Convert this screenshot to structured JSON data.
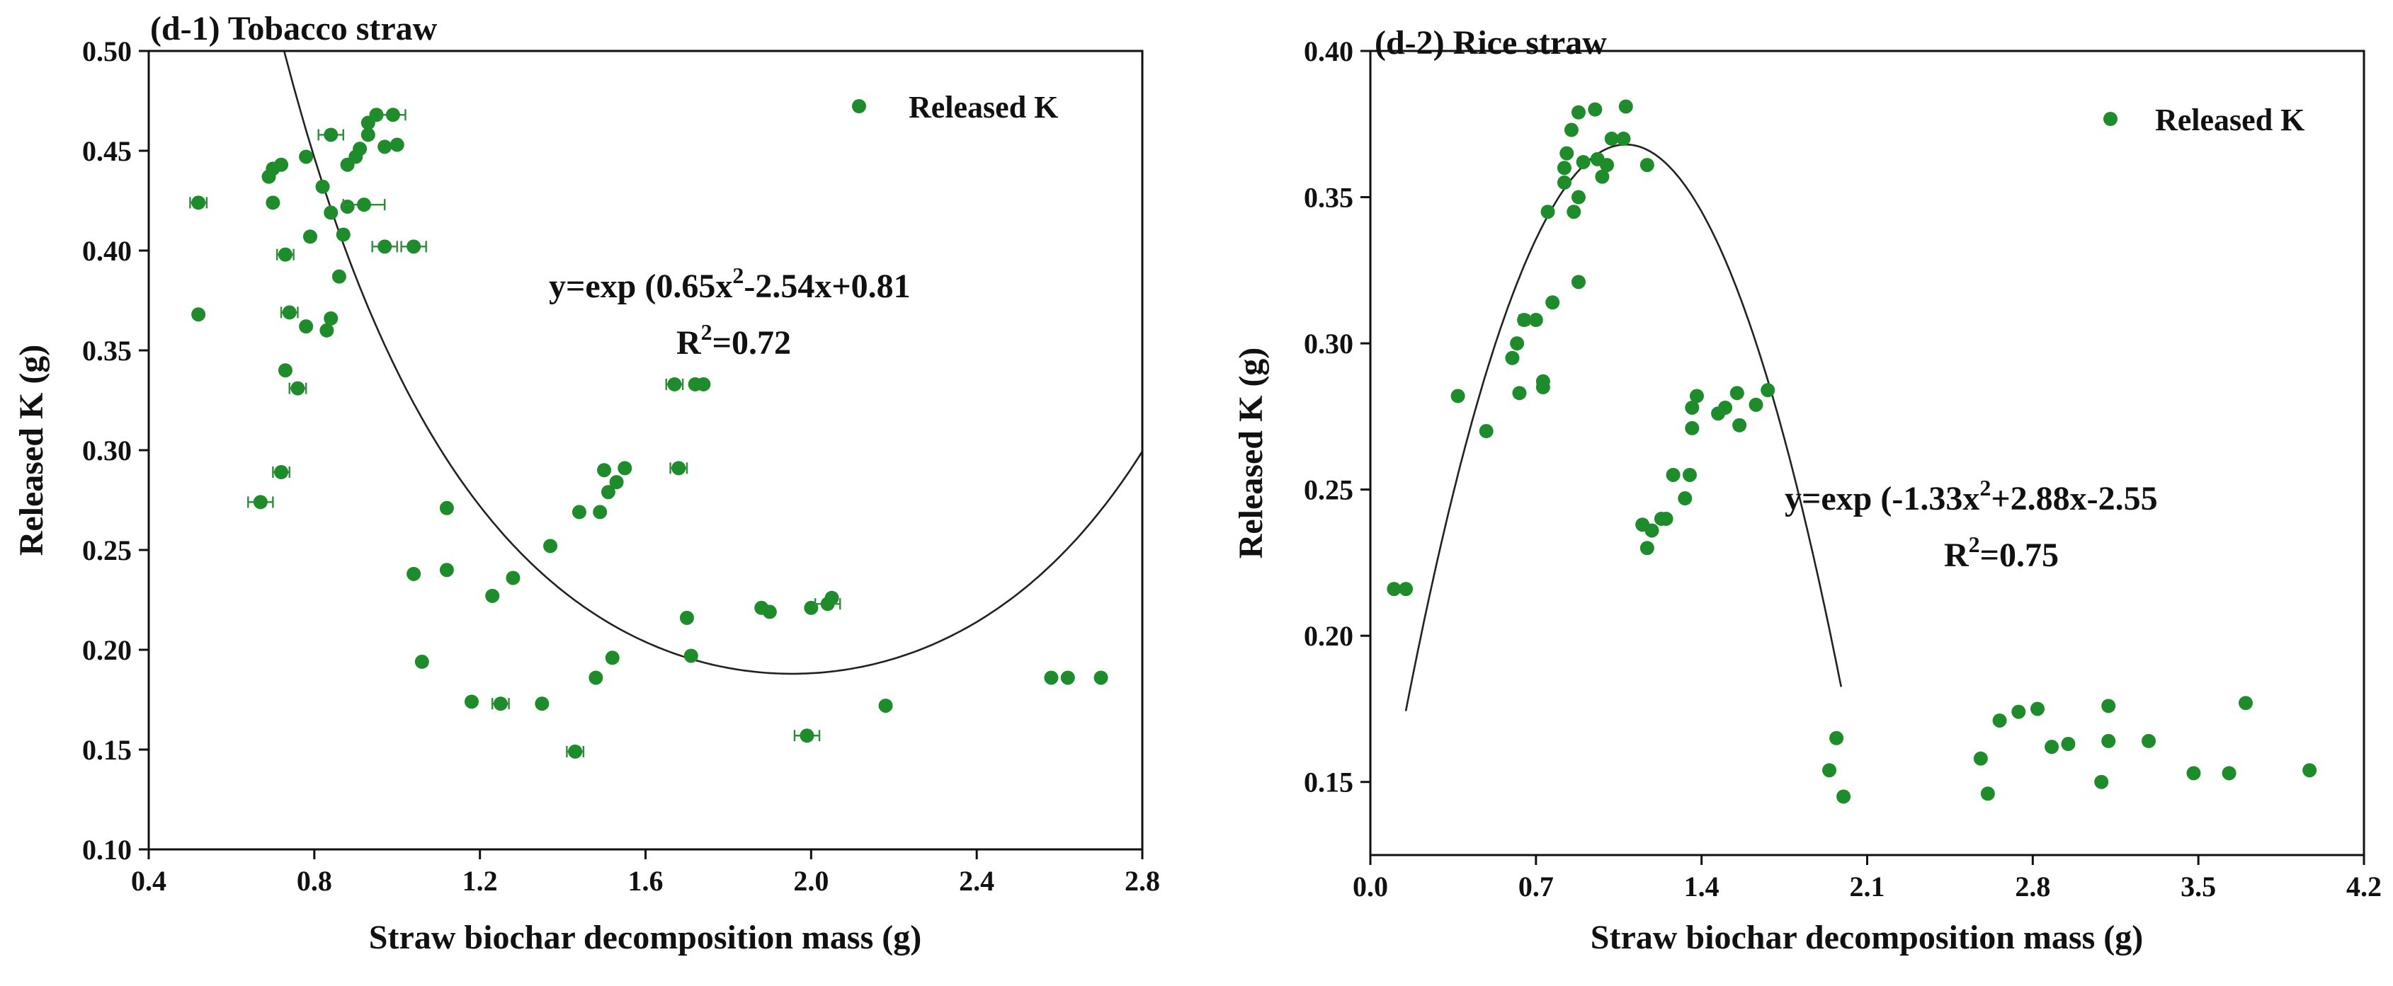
{
  "chart_data": [
    {
      "type": "scatter",
      "title": "(d-1) Tobacco straw",
      "xlabel": "Straw biochar decomposition mass (g)",
      "ylabel": "Released K (g)",
      "xlim": [
        0.4,
        2.8
      ],
      "ylim": [
        0.1,
        0.5
      ],
      "x_ticks": [
        "0.4",
        "0.8",
        "1.2",
        "1.6",
        "2.0",
        "2.4",
        "2.8"
      ],
      "y_ticks": [
        "0.10",
        "0.15",
        "0.20",
        "0.25",
        "0.30",
        "0.35",
        "0.40",
        "0.45",
        "0.50"
      ],
      "legend": {
        "label": "Released K",
        "position": "top-right"
      },
      "point_color": "#1e8c2a",
      "equation": {
        "line1_pre": "y=exp (0.65x",
        "line1_sup": "2",
        "line1_post": "-2.54x+0.81",
        "r2_pre": "R",
        "r2_sup": "2",
        "r2_post": "=0.72"
      },
      "fit": {
        "form": "exp(a*x^2+b*x+c)",
        "a": 0.65,
        "b": -2.54,
        "c": 0.81
      },
      "series": [
        {
          "name": "Released K",
          "points": [
            [
              0.52,
              0.424,
              0.02
            ],
            [
              0.52,
              0.368,
              0
            ],
            [
              0.67,
              0.274,
              0.03
            ],
            [
              0.7,
              0.424,
              0
            ],
            [
              0.69,
              0.437,
              0
            ],
            [
              0.7,
              0.441,
              0
            ],
            [
              0.72,
              0.443,
              0
            ],
            [
              0.72,
              0.289,
              0.02
            ],
            [
              0.73,
              0.398,
              0.02
            ],
            [
              0.73,
              0.34,
              0
            ],
            [
              0.74,
              0.369,
              0.02
            ],
            [
              0.76,
              0.331,
              0.02
            ],
            [
              0.78,
              0.362,
              0
            ],
            [
              0.78,
              0.447,
              0
            ],
            [
              0.79,
              0.407,
              0
            ],
            [
              0.82,
              0.432,
              0
            ],
            [
              0.83,
              0.36,
              0
            ],
            [
              0.84,
              0.366,
              0
            ],
            [
              0.84,
              0.419,
              0
            ],
            [
              0.84,
              0.458,
              0.03
            ],
            [
              0.86,
              0.387,
              0
            ],
            [
              0.87,
              0.408,
              0
            ],
            [
              0.88,
              0.422,
              0
            ],
            [
              0.88,
              0.443,
              0
            ],
            [
              0.9,
              0.447,
              0
            ],
            [
              0.91,
              0.451,
              0
            ],
            [
              0.92,
              0.423,
              0.05
            ],
            [
              0.93,
              0.458,
              0
            ],
            [
              0.93,
              0.464,
              0
            ],
            [
              0.95,
              0.468,
              0
            ],
            [
              0.97,
              0.452,
              0
            ],
            [
              0.97,
              0.402,
              0.03
            ],
            [
              0.99,
              0.468,
              0.03
            ],
            [
              1.0,
              0.453,
              0
            ],
            [
              1.04,
              0.402,
              0.03
            ],
            [
              1.04,
              0.238,
              0
            ],
            [
              1.06,
              0.194,
              0
            ],
            [
              1.12,
              0.24,
              0
            ],
            [
              1.12,
              0.271,
              0
            ],
            [
              1.18,
              0.174,
              0
            ],
            [
              1.23,
              0.227,
              0
            ],
            [
              1.25,
              0.173,
              0.02
            ],
            [
              1.28,
              0.236,
              0
            ],
            [
              1.35,
              0.173,
              0
            ],
            [
              1.37,
              0.252,
              0
            ],
            [
              1.43,
              0.149,
              0.02
            ],
            [
              1.44,
              0.269,
              0
            ],
            [
              1.48,
              0.186,
              0
            ],
            [
              1.49,
              0.269,
              0
            ],
            [
              1.5,
              0.29,
              0
            ],
            [
              1.51,
              0.279,
              0
            ],
            [
              1.52,
              0.196,
              0
            ],
            [
              1.53,
              0.284,
              0
            ],
            [
              1.55,
              0.291,
              0
            ],
            [
              1.67,
              0.333,
              0.02
            ],
            [
              1.68,
              0.291,
              0.02
            ],
            [
              1.7,
              0.216,
              0
            ],
            [
              1.71,
              0.197,
              0
            ],
            [
              1.72,
              0.333,
              0
            ],
            [
              1.74,
              0.333,
              0
            ],
            [
              1.88,
              0.221,
              0
            ],
            [
              1.9,
              0.219,
              0
            ],
            [
              1.99,
              0.157,
              0.03
            ],
            [
              2.0,
              0.221,
              0
            ],
            [
              2.04,
              0.223,
              0.03
            ],
            [
              2.05,
              0.226,
              0
            ],
            [
              2.18,
              0.172,
              0
            ],
            [
              2.58,
              0.186,
              0
            ],
            [
              2.62,
              0.186,
              0
            ],
            [
              2.7,
              0.186,
              0
            ]
          ]
        }
      ]
    },
    {
      "type": "scatter",
      "title": "(d-2) Rice straw",
      "xlabel": "Straw biochar decomposition mass (g)",
      "ylabel": "Released K (g)",
      "xlim": [
        0.0,
        4.2
      ],
      "ylim": [
        0.125,
        0.4
      ],
      "x_ticks": [
        "0.0",
        "0.7",
        "1.4",
        "2.1",
        "2.8",
        "3.5",
        "4.2"
      ],
      "y_ticks": [
        "0.15",
        "0.20",
        "0.25",
        "0.30",
        "0.35",
        "0.40"
      ],
      "legend": {
        "label": "Released K",
        "position": "top-right"
      },
      "point_color": "#1e8c2a",
      "equation": {
        "line1_pre": "y=exp (-1.33x",
        "line1_sup": "2",
        "line1_post": "+2.88x-2.55",
        "r2_pre": "R",
        "r2_sup": "2",
        "r2_post": "=0.75"
      },
      "fit": {
        "form": "quadratic-peak",
        "peak_x": 1.08,
        "peak_y": 0.368,
        "curvature": -0.224
      },
      "series": [
        {
          "name": "Released K",
          "points": [
            [
              0.1,
              0.216,
              0
            ],
            [
              0.15,
              0.216,
              0
            ],
            [
              0.37,
              0.282,
              0
            ],
            [
              0.49,
              0.27,
              0
            ],
            [
              0.6,
              0.295,
              0
            ],
            [
              0.62,
              0.3,
              0
            ],
            [
              0.63,
              0.283,
              0
            ],
            [
              0.65,
              0.308,
              0.02
            ],
            [
              0.7,
              0.308,
              0
            ],
            [
              0.73,
              0.287,
              0
            ],
            [
              0.73,
              0.285,
              0
            ],
            [
              0.75,
              0.345,
              0
            ],
            [
              0.77,
              0.314,
              0
            ],
            [
              0.82,
              0.355,
              0
            ],
            [
              0.82,
              0.36,
              0
            ],
            [
              0.83,
              0.365,
              0
            ],
            [
              0.85,
              0.373,
              0
            ],
            [
              0.86,
              0.345,
              0
            ],
            [
              0.88,
              0.35,
              0
            ],
            [
              0.88,
              0.321,
              0
            ],
            [
              0.88,
              0.379,
              0
            ],
            [
              0.9,
              0.362,
              0
            ],
            [
              0.95,
              0.38,
              0
            ],
            [
              0.96,
              0.363,
              0
            ],
            [
              0.98,
              0.357,
              0
            ],
            [
              1.0,
              0.361,
              0
            ],
            [
              1.02,
              0.37,
              0
            ],
            [
              1.07,
              0.37,
              0
            ],
            [
              1.08,
              0.381,
              0
            ],
            [
              1.17,
              0.361,
              0
            ],
            [
              1.15,
              0.238,
              0
            ],
            [
              1.17,
              0.23,
              0
            ],
            [
              1.19,
              0.236,
              0
            ],
            [
              1.23,
              0.24,
              0
            ],
            [
              1.25,
              0.24,
              0
            ],
            [
              1.28,
              0.255,
              0
            ],
            [
              1.33,
              0.247,
              0
            ],
            [
              1.35,
              0.255,
              0
            ],
            [
              1.36,
              0.271,
              0
            ],
            [
              1.36,
              0.278,
              0
            ],
            [
              1.38,
              0.282,
              0
            ],
            [
              1.47,
              0.276,
              0
            ],
            [
              1.5,
              0.278,
              0
            ],
            [
              1.55,
              0.283,
              0
            ],
            [
              1.56,
              0.272,
              0
            ],
            [
              1.63,
              0.279,
              0
            ],
            [
              1.68,
              0.284,
              0
            ],
            [
              1.94,
              0.154,
              0
            ],
            [
              1.97,
              0.165,
              0
            ],
            [
              2.0,
              0.145,
              0
            ],
            [
              2.58,
              0.158,
              0
            ],
            [
              2.61,
              0.146,
              0
            ],
            [
              2.66,
              0.171,
              0
            ],
            [
              2.74,
              0.174,
              0
            ],
            [
              2.82,
              0.175,
              0
            ],
            [
              2.88,
              0.162,
              0
            ],
            [
              2.95,
              0.163,
              0
            ],
            [
              3.09,
              0.15,
              0
            ],
            [
              3.12,
              0.176,
              0
            ],
            [
              3.12,
              0.164,
              0
            ],
            [
              3.29,
              0.164,
              0
            ],
            [
              3.48,
              0.153,
              0
            ],
            [
              3.63,
              0.153,
              0
            ],
            [
              3.7,
              0.177,
              0
            ],
            [
              3.97,
              0.154,
              0
            ]
          ]
        }
      ]
    }
  ]
}
